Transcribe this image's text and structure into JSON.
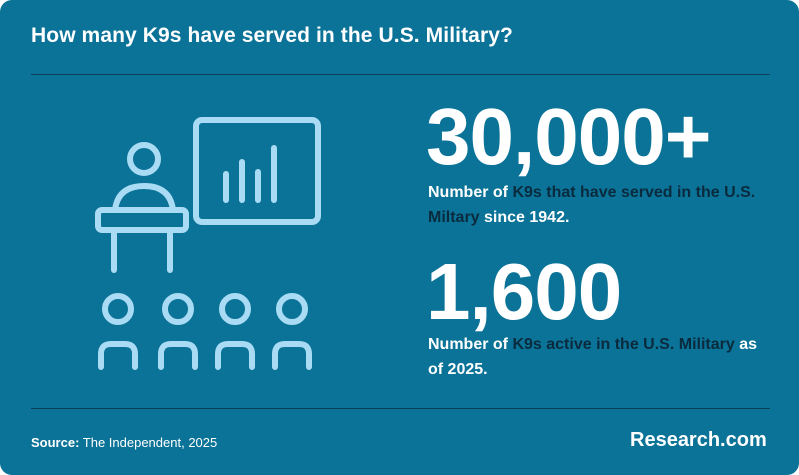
{
  "title": "How many K9s have served in the U.S. Military?",
  "stats": [
    {
      "number": "30,000+",
      "desc_pre": "Number of ",
      "desc_highlight": "K9s that have served in the U.S. Miltary",
      "desc_post": " since 1942."
    },
    {
      "number": "1,600",
      "desc_pre": "Number of ",
      "desc_highlight": "K9s active in the U.S. Military",
      "desc_post": " as of 2025."
    }
  ],
  "footer": {
    "source_label": "Source:",
    "source_text": " The Independent, 2025",
    "brand": "Research.com"
  },
  "illustration": {
    "icon": "presentation-audience-icon"
  },
  "colors": {
    "background": "#0b7397",
    "rule": "#0a3f58",
    "highlight_text": "#0a2a3e",
    "icon_stroke": "#a9dcf4",
    "text": "#ffffff"
  }
}
